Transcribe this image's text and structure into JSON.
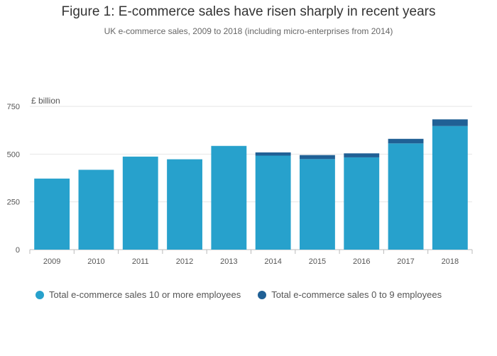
{
  "chart_data": {
    "type": "bar",
    "stacked": true,
    "title": "Figure 1: E-commerce sales have risen sharply in recent years",
    "subtitle": "UK e-commerce sales, 2009 to 2018 (including micro-enterprises from 2014)",
    "ylabel": "£ billion",
    "xlabel": "",
    "ylim": [
      0,
      750
    ],
    "yticks": [
      0,
      250,
      500,
      750
    ],
    "categories": [
      "2009",
      "2010",
      "2011",
      "2012",
      "2013",
      "2014",
      "2015",
      "2016",
      "2017",
      "2018"
    ],
    "series": [
      {
        "name": "Total e-commerce sales 10 or more employees",
        "color": "#27a1cc",
        "values": [
          372,
          418,
          487,
          473,
          543,
          492,
          474,
          483,
          556,
          647
        ]
      },
      {
        "name": "Total e-commerce sales 0 to 9 employees",
        "color": "#206095",
        "values": [
          0,
          0,
          0,
          0,
          0,
          17,
          21,
          21,
          24,
          35
        ]
      }
    ],
    "legend_position": "bottom-left",
    "grid": true
  }
}
